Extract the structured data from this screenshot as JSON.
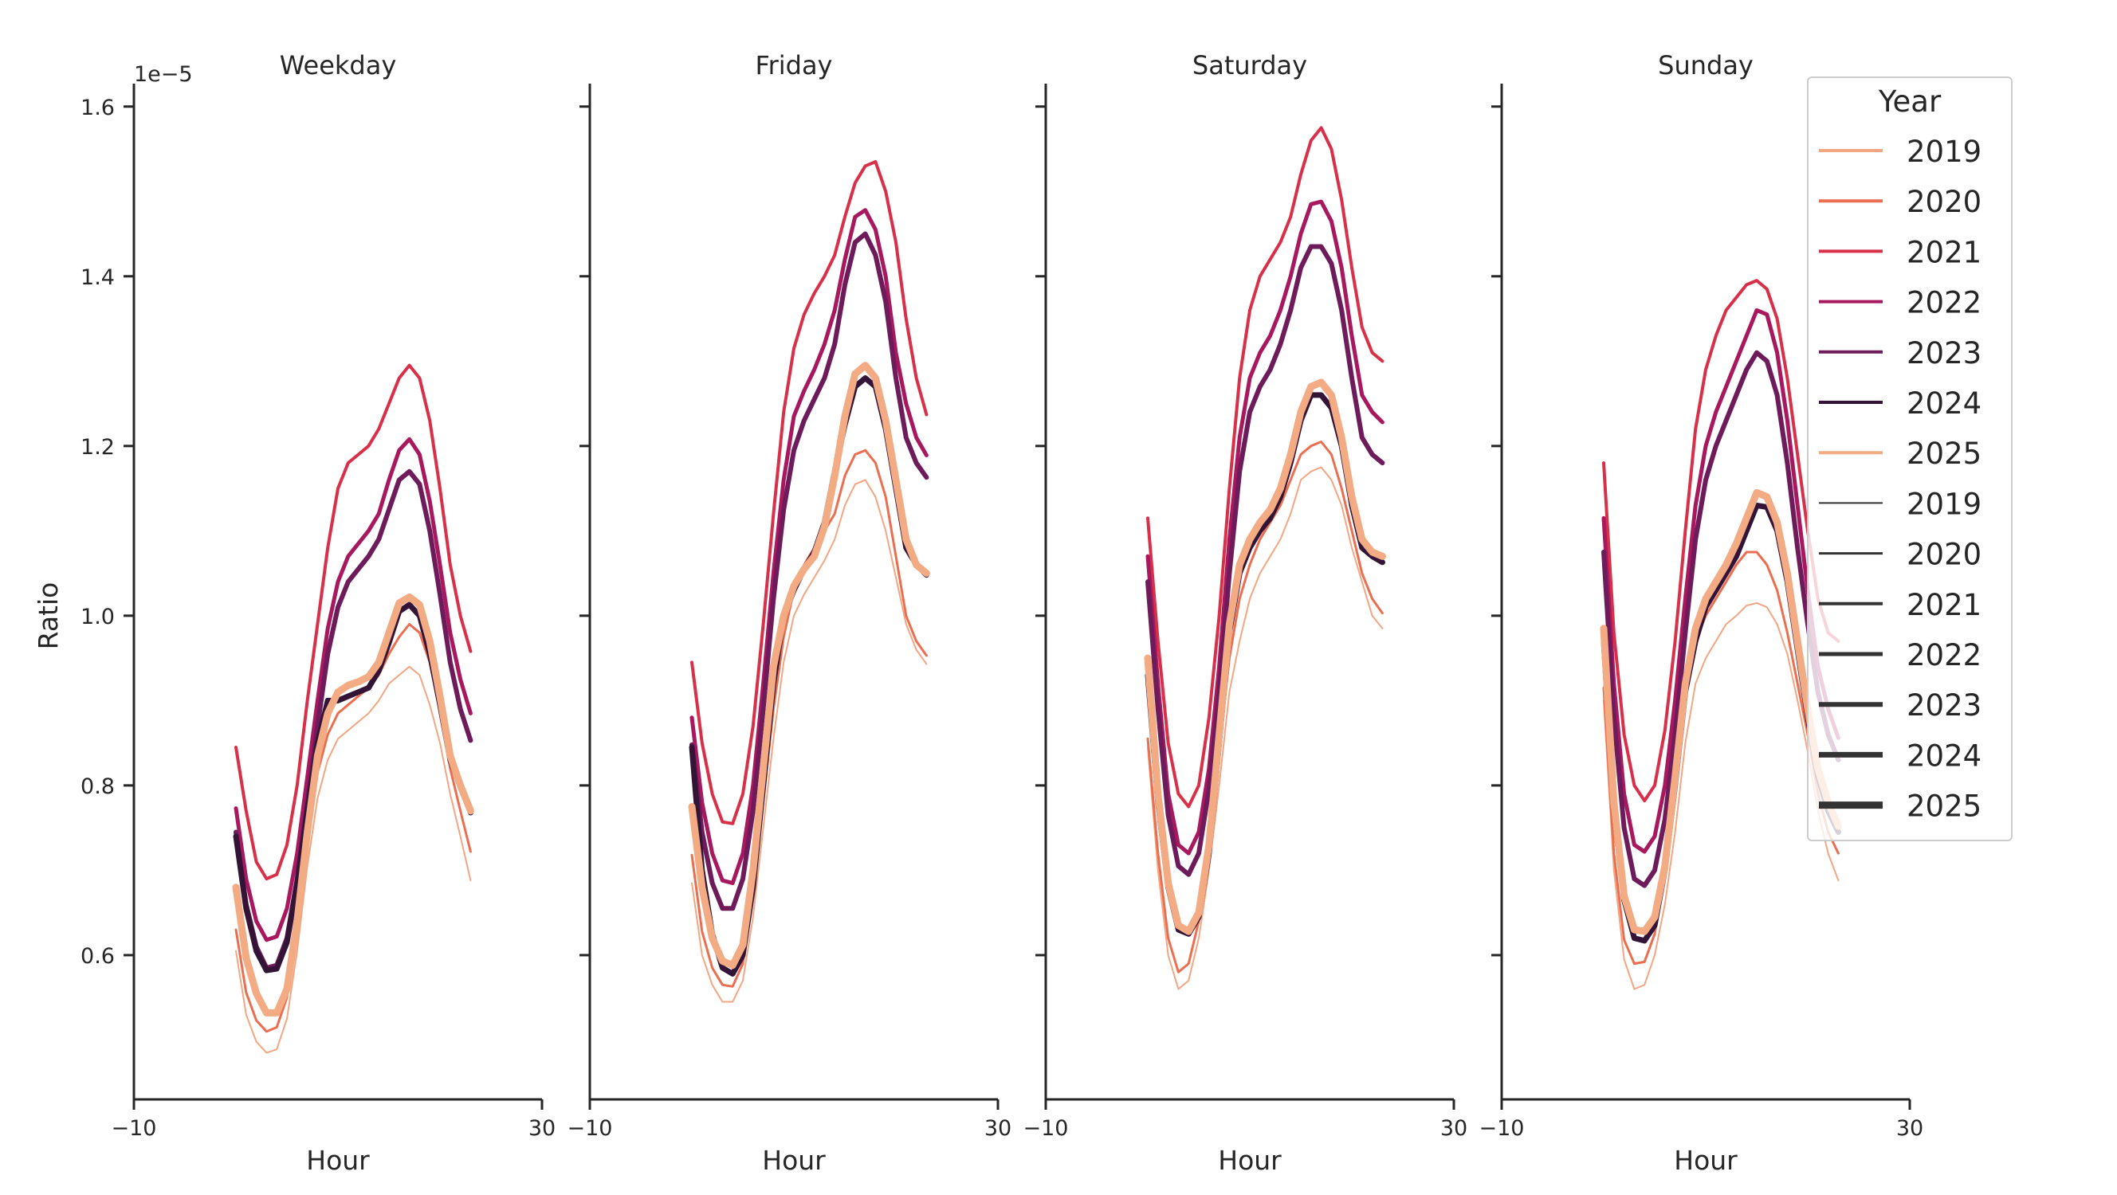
{
  "chart_data": {
    "type": "line",
    "x_label": "Hour",
    "y_label": "Ratio",
    "y_offset_label": "1e−5",
    "x_ticks": [
      "−10",
      "30"
    ],
    "y_ticks": [
      "0.6",
      "0.8",
      "1.0",
      "1.2",
      "1.4",
      "1.6"
    ],
    "xlim": [
      -10,
      30
    ],
    "ylim": [
      0.43,
      1.627
    ],
    "legend": {
      "title": "Year",
      "placement": "top-right",
      "hue_entries": [
        "2019",
        "2020",
        "2021",
        "2022",
        "2023",
        "2024",
        "2025"
      ],
      "size_entries": [
        "2019",
        "2020",
        "2021",
        "2022",
        "2023",
        "2024",
        "2025"
      ]
    },
    "hours": [
      0,
      1,
      2,
      3,
      4,
      5,
      6,
      7,
      8,
      9,
      10,
      11,
      12,
      13,
      14,
      15,
      16,
      17,
      18,
      19,
      20,
      21,
      22,
      23
    ],
    "years": [
      {
        "year": "2019",
        "color": "#f4a582",
        "width": 2
      },
      {
        "year": "2020",
        "color": "#ec6e50",
        "width": 3
      },
      {
        "year": "2021",
        "color": "#d9304a",
        "width": 4
      },
      {
        "year": "2022",
        "color": "#a8185e",
        "width": 5
      },
      {
        "year": "2023",
        "color": "#6d1b5a",
        "width": 6
      },
      {
        "year": "2024",
        "color": "#331437",
        "width": 7
      },
      {
        "year": "2025",
        "color": "#f3ab84",
        "width": 9
      }
    ],
    "panels": [
      {
        "title": "Weekday",
        "series": [
          {
            "year": "2019",
            "values": [
              0.605,
              0.53,
              0.498,
              0.485,
              0.489,
              0.525,
              0.605,
              0.705,
              0.785,
              0.83,
              0.855,
              0.865,
              0.875,
              0.885,
              0.9,
              0.92,
              0.93,
              0.94,
              0.93,
              0.895,
              0.85,
              0.79,
              0.74,
              0.688
            ]
          },
          {
            "year": "2020",
            "values": [
              0.63,
              0.556,
              0.523,
              0.51,
              0.515,
              0.55,
              0.635,
              0.735,
              0.815,
              0.86,
              0.885,
              0.895,
              0.905,
              0.915,
              0.93,
              0.955,
              0.975,
              0.99,
              0.98,
              0.945,
              0.89,
              0.82,
              0.77,
              0.722
            ]
          },
          {
            "year": "2021",
            "values": [
              0.845,
              0.77,
              0.71,
              0.69,
              0.695,
              0.73,
              0.8,
              0.9,
              0.99,
              1.08,
              1.15,
              1.18,
              1.19,
              1.2,
              1.22,
              1.25,
              1.28,
              1.295,
              1.28,
              1.23,
              1.15,
              1.06,
              1.0,
              0.958
            ]
          },
          {
            "year": "2022",
            "values": [
              0.773,
              0.69,
              0.64,
              0.618,
              0.622,
              0.655,
              0.72,
              0.81,
              0.9,
              0.985,
              1.04,
              1.07,
              1.085,
              1.1,
              1.12,
              1.16,
              1.195,
              1.208,
              1.19,
              1.135,
              1.06,
              0.98,
              0.925,
              0.885
            ]
          },
          {
            "year": "2023",
            "values": [
              0.745,
              0.66,
              0.61,
              0.585,
              0.588,
              0.62,
              0.69,
              0.78,
              0.87,
              0.955,
              1.01,
              1.04,
              1.055,
              1.07,
              1.09,
              1.125,
              1.16,
              1.17,
              1.155,
              1.1,
              1.025,
              0.945,
              0.89,
              0.853
            ]
          },
          {
            "year": "2024",
            "values": [
              0.74,
              0.655,
              0.605,
              0.582,
              0.584,
              0.615,
              0.685,
              0.77,
              0.85,
              0.9,
              0.9,
              0.905,
              0.91,
              0.915,
              0.935,
              0.968,
              1.005,
              1.013,
              1.0,
              0.955,
              0.895,
              0.83,
              0.8,
              0.768
            ]
          },
          {
            "year": "2025",
            "values": [
              0.68,
              0.597,
              0.555,
              0.532,
              0.532,
              0.56,
              0.64,
              0.745,
              0.835,
              0.885,
              0.91,
              0.918,
              0.922,
              0.928,
              0.945,
              0.98,
              1.015,
              1.022,
              1.013,
              0.97,
              0.905,
              0.835,
              0.8,
              0.77
            ]
          }
        ]
      },
      {
        "title": "Friday",
        "series": [
          {
            "year": "2019",
            "values": [
              0.685,
              0.6,
              0.565,
              0.545,
              0.545,
              0.57,
              0.645,
              0.75,
              0.855,
              0.945,
              1.0,
              1.025,
              1.045,
              1.065,
              1.09,
              1.13,
              1.155,
              1.16,
              1.14,
              1.1,
              1.045,
              0.99,
              0.96,
              0.943
            ]
          },
          {
            "year": "2020",
            "values": [
              0.718,
              0.628,
              0.585,
              0.565,
              0.563,
              0.59,
              0.67,
              0.78,
              0.89,
              0.975,
              1.03,
              1.06,
              1.08,
              1.1,
              1.12,
              1.165,
              1.19,
              1.195,
              1.18,
              1.14,
              1.07,
              1.0,
              0.97,
              0.953
            ]
          },
          {
            "year": "2021",
            "values": [
              0.945,
              0.85,
              0.79,
              0.757,
              0.755,
              0.79,
              0.87,
              0.99,
              1.12,
              1.24,
              1.315,
              1.355,
              1.38,
              1.4,
              1.425,
              1.47,
              1.51,
              1.53,
              1.535,
              1.5,
              1.44,
              1.35,
              1.28,
              1.237
            ]
          },
          {
            "year": "2022",
            "values": [
              0.88,
              0.78,
              0.72,
              0.688,
              0.685,
              0.72,
              0.8,
              0.92,
              1.05,
              1.16,
              1.235,
              1.265,
              1.29,
              1.32,
              1.36,
              1.42,
              1.47,
              1.478,
              1.455,
              1.4,
              1.31,
              1.25,
              1.21,
              1.189
            ]
          },
          {
            "year": "2023",
            "values": [
              0.848,
              0.745,
              0.685,
              0.655,
              0.655,
              0.69,
              0.77,
              0.89,
              1.02,
              1.125,
              1.195,
              1.23,
              1.255,
              1.28,
              1.32,
              1.39,
              1.44,
              1.45,
              1.425,
              1.37,
              1.28,
              1.21,
              1.18,
              1.163
            ]
          },
          {
            "year": "2024",
            "values": [
              0.845,
              0.7,
              0.625,
              0.585,
              0.578,
              0.6,
              0.68,
              0.8,
              0.92,
              1.0,
              1.03,
              1.055,
              1.075,
              1.11,
              1.17,
              1.225,
              1.27,
              1.28,
              1.27,
              1.22,
              1.15,
              1.08,
              1.06,
              1.048
            ]
          },
          {
            "year": "2025",
            "values": [
              0.775,
              0.68,
              0.62,
              0.593,
              0.588,
              0.612,
              0.7,
              0.82,
              0.94,
              1.0,
              1.035,
              1.055,
              1.07,
              1.105,
              1.165,
              1.235,
              1.285,
              1.295,
              1.28,
              1.23,
              1.16,
              1.09,
              1.06,
              1.05
            ]
          }
        ]
      },
      {
        "title": "Saturday",
        "series": [
          {
            "year": "2019",
            "values": [
              0.845,
              0.7,
              0.6,
              0.56,
              0.57,
              0.62,
              0.7,
              0.8,
              0.91,
              0.97,
              1.02,
              1.05,
              1.07,
              1.09,
              1.12,
              1.16,
              1.17,
              1.175,
              1.16,
              1.13,
              1.08,
              1.04,
              1.0,
              0.985
            ]
          },
          {
            "year": "2020",
            "values": [
              0.855,
              0.72,
              0.62,
              0.58,
              0.59,
              0.64,
              0.73,
              0.84,
              0.95,
              1.02,
              1.06,
              1.09,
              1.11,
              1.13,
              1.16,
              1.19,
              1.2,
              1.205,
              1.19,
              1.15,
              1.1,
              1.05,
              1.02,
              1.003
            ]
          },
          {
            "year": "2021",
            "values": [
              1.115,
              0.97,
              0.85,
              0.79,
              0.775,
              0.8,
              0.88,
              1.0,
              1.15,
              1.28,
              1.36,
              1.4,
              1.42,
              1.44,
              1.47,
              1.52,
              1.56,
              1.575,
              1.55,
              1.49,
              1.41,
              1.34,
              1.31,
              1.3
            ]
          },
          {
            "year": "2022",
            "values": [
              1.07,
              0.92,
              0.79,
              0.73,
              0.72,
              0.745,
              0.82,
              0.94,
              1.09,
              1.21,
              1.28,
              1.31,
              1.33,
              1.36,
              1.4,
              1.45,
              1.485,
              1.488,
              1.465,
              1.41,
              1.33,
              1.26,
              1.24,
              1.228
            ]
          },
          {
            "year": "2023",
            "values": [
              1.04,
              0.89,
              0.765,
              0.705,
              0.695,
              0.72,
              0.795,
              0.91,
              1.05,
              1.17,
              1.24,
              1.27,
              1.29,
              1.32,
              1.36,
              1.41,
              1.435,
              1.435,
              1.415,
              1.36,
              1.28,
              1.21,
              1.19,
              1.18
            ]
          },
          {
            "year": "2024",
            "values": [
              0.93,
              0.78,
              0.68,
              0.63,
              0.625,
              0.645,
              0.72,
              0.85,
              0.98,
              1.05,
              1.08,
              1.1,
              1.115,
              1.14,
              1.18,
              1.23,
              1.26,
              1.26,
              1.245,
              1.2,
              1.13,
              1.08,
              1.07,
              1.063
            ]
          },
          {
            "year": "2025",
            "values": [
              0.95,
              0.79,
              0.685,
              0.635,
              0.628,
              0.65,
              0.73,
              0.86,
              0.99,
              1.06,
              1.09,
              1.11,
              1.125,
              1.15,
              1.19,
              1.24,
              1.27,
              1.275,
              1.26,
              1.21,
              1.14,
              1.09,
              1.075,
              1.07
            ]
          }
        ]
      },
      {
        "title": "Sunday",
        "series": [
          {
            "year": "2019",
            "values": [
              0.9,
              0.7,
              0.595,
              0.56,
              0.565,
              0.6,
              0.66,
              0.745,
              0.85,
              0.92,
              0.95,
              0.97,
              0.99,
              1.0,
              1.012,
              1.015,
              1.01,
              0.99,
              0.955,
              0.9,
              0.84,
              0.77,
              0.72,
              0.688
            ]
          },
          {
            "year": "2020",
            "values": [
              0.915,
              0.72,
              0.618,
              0.59,
              0.592,
              0.625,
              0.7,
              0.8,
              0.91,
              0.97,
              1.0,
              1.02,
              1.04,
              1.06,
              1.075,
              1.075,
              1.06,
              1.03,
              0.98,
              0.92,
              0.86,
              0.79,
              0.745,
              0.72
            ]
          },
          {
            "year": "2021",
            "values": [
              1.18,
              0.98,
              0.86,
              0.8,
              0.782,
              0.8,
              0.865,
              0.97,
              1.1,
              1.22,
              1.29,
              1.33,
              1.36,
              1.375,
              1.39,
              1.395,
              1.385,
              1.35,
              1.28,
              1.19,
              1.1,
              1.02,
              0.98,
              0.97
            ]
          },
          {
            "year": "2022",
            "values": [
              1.115,
              0.92,
              0.79,
              0.73,
              0.722,
              0.74,
              0.8,
              0.9,
              1.02,
              1.13,
              1.2,
              1.24,
              1.27,
              1.3,
              1.33,
              1.36,
              1.355,
              1.31,
              1.23,
              1.13,
              1.03,
              0.94,
              0.89,
              0.856
            ]
          },
          {
            "year": "2023",
            "values": [
              1.075,
              0.88,
              0.75,
              0.69,
              0.682,
              0.7,
              0.76,
              0.86,
              0.98,
              1.09,
              1.16,
              1.2,
              1.23,
              1.26,
              1.29,
              1.31,
              1.3,
              1.26,
              1.18,
              1.08,
              0.99,
              0.91,
              0.86,
              0.83
            ]
          },
          {
            "year": "2024",
            "values": [
              0.97,
              0.77,
              0.665,
              0.62,
              0.617,
              0.635,
              0.7,
              0.8,
              0.91,
              0.97,
              1.01,
              1.03,
              1.05,
              1.07,
              1.1,
              1.13,
              1.128,
              1.1,
              1.04,
              0.96,
              0.88,
              0.81,
              0.77,
              0.745
            ]
          },
          {
            "year": "2025",
            "values": [
              0.985,
              0.78,
              0.67,
              0.63,
              0.628,
              0.645,
              0.705,
              0.81,
              0.92,
              0.985,
              1.02,
              1.04,
              1.06,
              1.085,
              1.115,
              1.145,
              1.14,
              1.11,
              1.05,
              0.97,
              0.89,
              0.82,
              0.78,
              0.752
            ]
          }
        ]
      }
    ]
  }
}
